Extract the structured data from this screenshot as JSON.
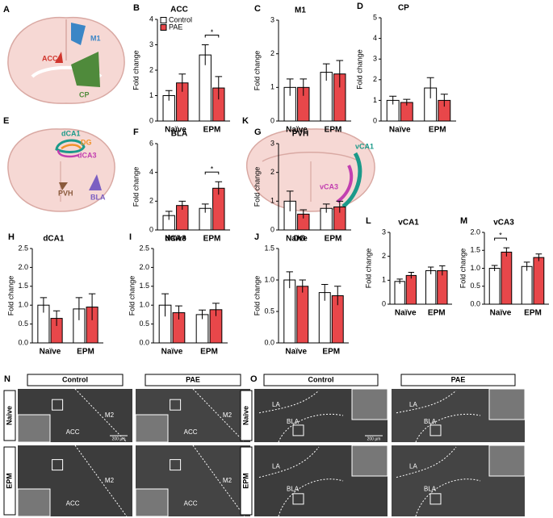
{
  "diagrams": [
    {
      "letter": "A",
      "labels": [
        "ACC",
        "M1",
        "CP"
      ]
    },
    {
      "letter": "E",
      "labels": [
        "dCA1",
        "DG",
        "dCA3",
        "PVH",
        "BLA"
      ]
    },
    {
      "letter": "K",
      "labels": [
        "vCA1",
        "vCA3"
      ]
    }
  ],
  "chart_data": [
    {
      "type": "bar",
      "panel": "B",
      "title": "ACC",
      "ylabel": "Fold change",
      "categories": [
        "Naïve",
        "EPM"
      ],
      "series": [
        {
          "name": "Control",
          "color": "#ffffff",
          "values": [
            1.0,
            2.6
          ],
          "errors": [
            0.2,
            0.4
          ]
        },
        {
          "name": "PAE",
          "color": "#e8474a",
          "values": [
            1.5,
            1.3
          ],
          "errors": [
            0.35,
            0.45
          ]
        }
      ],
      "ylim": [
        0,
        4
      ],
      "yticks": [
        0,
        1,
        2,
        3,
        4
      ],
      "legend": true,
      "significance": {
        "label": "*",
        "category": 1
      }
    },
    {
      "type": "bar",
      "panel": "C",
      "title": "M1",
      "ylabel": "Fold change",
      "categories": [
        "Naïve",
        "EPM"
      ],
      "series": [
        {
          "color": "#ffffff",
          "values": [
            1.0,
            1.45
          ],
          "errors": [
            0.25,
            0.25
          ]
        },
        {
          "color": "#e8474a",
          "values": [
            1.0,
            1.4
          ],
          "errors": [
            0.25,
            0.4
          ]
        }
      ],
      "ylim": [
        0,
        3
      ],
      "yticks": [
        0,
        1,
        2,
        3
      ],
      "legend": false
    },
    {
      "type": "bar",
      "panel": "D",
      "title": "CP",
      "ylabel": "Fold change",
      "categories": [
        "Naïve",
        "EPM"
      ],
      "series": [
        {
          "color": "#ffffff",
          "values": [
            1.0,
            1.6
          ],
          "errors": [
            0.2,
            0.5
          ]
        },
        {
          "color": "#e8474a",
          "values": [
            0.9,
            1.0
          ],
          "errors": [
            0.15,
            0.3
          ]
        }
      ],
      "ylim": [
        0,
        5
      ],
      "yticks": [
        0,
        1,
        2,
        3,
        4,
        5
      ],
      "legend": false
    },
    {
      "type": "bar",
      "panel": "F",
      "title": "BLA",
      "ylabel": "Fold change",
      "categories": [
        "Naïve",
        "EPM"
      ],
      "series": [
        {
          "color": "#ffffff",
          "values": [
            1.0,
            1.5
          ],
          "errors": [
            0.3,
            0.3
          ]
        },
        {
          "color": "#e8474a",
          "values": [
            1.7,
            2.9
          ],
          "errors": [
            0.3,
            0.45
          ]
        }
      ],
      "ylim": [
        0,
        6
      ],
      "yticks": [
        0,
        2,
        4,
        6
      ],
      "legend": false,
      "significance": {
        "label": "*",
        "category": 1
      }
    },
    {
      "type": "bar",
      "panel": "G",
      "title": "PVH",
      "ylabel": "Fold change",
      "categories": [
        "Naïve",
        "EPM"
      ],
      "series": [
        {
          "color": "#ffffff",
          "values": [
            1.0,
            0.75
          ],
          "errors": [
            0.35,
            0.15
          ]
        },
        {
          "color": "#e8474a",
          "values": [
            0.55,
            0.8
          ],
          "errors": [
            0.15,
            0.2
          ]
        }
      ],
      "ylim": [
        0,
        3
      ],
      "yticks": [
        0,
        1,
        2,
        3
      ],
      "legend": false
    },
    {
      "type": "bar",
      "panel": "H",
      "title": "dCA1",
      "ylabel": "Fold change",
      "categories": [
        "Naïve",
        "EPM"
      ],
      "series": [
        {
          "color": "#ffffff",
          "values": [
            1.0,
            0.9
          ],
          "errors": [
            0.2,
            0.3
          ]
        },
        {
          "color": "#e8474a",
          "values": [
            0.65,
            0.95
          ],
          "errors": [
            0.2,
            0.35
          ]
        }
      ],
      "ylim": [
        0,
        2.5
      ],
      "yticks": [
        {
          "value": 0,
          "label": "0.0"
        },
        0.5,
        {
          "value": 1,
          "label": "1.0"
        },
        1.5,
        {
          "value": 2,
          "label": "2.0"
        },
        2.5
      ],
      "legend": false
    },
    {
      "type": "bar",
      "panel": "I",
      "title": "dCA3",
      "ylabel": "Fold change",
      "categories": [
        "Naïve",
        "EPM"
      ],
      "series": [
        {
          "color": "#ffffff",
          "values": [
            1.0,
            0.75
          ],
          "errors": [
            0.3,
            0.12
          ]
        },
        {
          "color": "#e8474a",
          "values": [
            0.8,
            0.88
          ],
          "errors": [
            0.18,
            0.17
          ]
        }
      ],
      "ylim": [
        0,
        2.5
      ],
      "yticks": [
        {
          "value": 0,
          "label": "0.0"
        },
        0.5,
        {
          "value": 1,
          "label": "1.0"
        },
        1.5,
        {
          "value": 2,
          "label": "2.0"
        },
        2.5
      ],
      "legend": false
    },
    {
      "type": "bar",
      "panel": "J",
      "title": "DG",
      "ylabel": "Fold change",
      "categories": [
        "Naïve",
        "EPM"
      ],
      "series": [
        {
          "color": "#ffffff",
          "values": [
            1.0,
            0.8
          ],
          "errors": [
            0.13,
            0.13
          ]
        },
        {
          "color": "#e8474a",
          "values": [
            0.9,
            0.75
          ],
          "errors": [
            0.1,
            0.15
          ]
        }
      ],
      "ylim": [
        0,
        1.5
      ],
      "yticks": [
        {
          "value": 0,
          "label": "0.0"
        },
        0.5,
        {
          "value": 1,
          "label": "1.0"
        },
        1.5
      ],
      "legend": false
    },
    {
      "type": "bar",
      "panel": "L",
      "title": "vCA1",
      "ylabel": "Fold change",
      "categories": [
        "Naïve",
        "EPM"
      ],
      "series": [
        {
          "color": "#ffffff",
          "values": [
            0.95,
            1.4
          ],
          "errors": [
            0.1,
            0.15
          ]
        },
        {
          "color": "#e8474a",
          "values": [
            1.2,
            1.4
          ],
          "errors": [
            0.13,
            0.2
          ]
        }
      ],
      "ylim": [
        0,
        3
      ],
      "yticks": [
        0,
        1,
        2,
        3
      ],
      "legend": false
    },
    {
      "type": "bar",
      "panel": "M",
      "title": "vCA3",
      "ylabel": "Fold change",
      "categories": [
        "Naïve",
        "EPM"
      ],
      "series": [
        {
          "color": "#ffffff",
          "values": [
            1.0,
            1.05
          ],
          "errors": [
            0.08,
            0.12
          ]
        },
        {
          "color": "#e8474a",
          "values": [
            1.45,
            1.3
          ],
          "errors": [
            0.12,
            0.1
          ]
        }
      ],
      "ylim": [
        0,
        2
      ],
      "yticks": [
        {
          "value": 0,
          "label": "0.0"
        },
        0.5,
        {
          "value": 1,
          "label": "1.0"
        },
        1.5,
        {
          "value": 2,
          "label": "2.0"
        }
      ],
      "legend": false,
      "significance": {
        "label": "*",
        "category": 0
      }
    }
  ],
  "micrographs": [
    {
      "letter": "N",
      "columns": [
        "Control",
        "PAE"
      ],
      "rows": [
        "Naive",
        "EPM"
      ],
      "region_labels": [
        "ACC",
        "M2"
      ],
      "scale_bar": "200 µm"
    },
    {
      "letter": "O",
      "columns": [
        "Control",
        "PAE"
      ],
      "rows": [
        "Naive",
        "EPM"
      ],
      "region_labels": [
        "LA",
        "BLA"
      ],
      "scale_bar": "200 µm"
    }
  ]
}
